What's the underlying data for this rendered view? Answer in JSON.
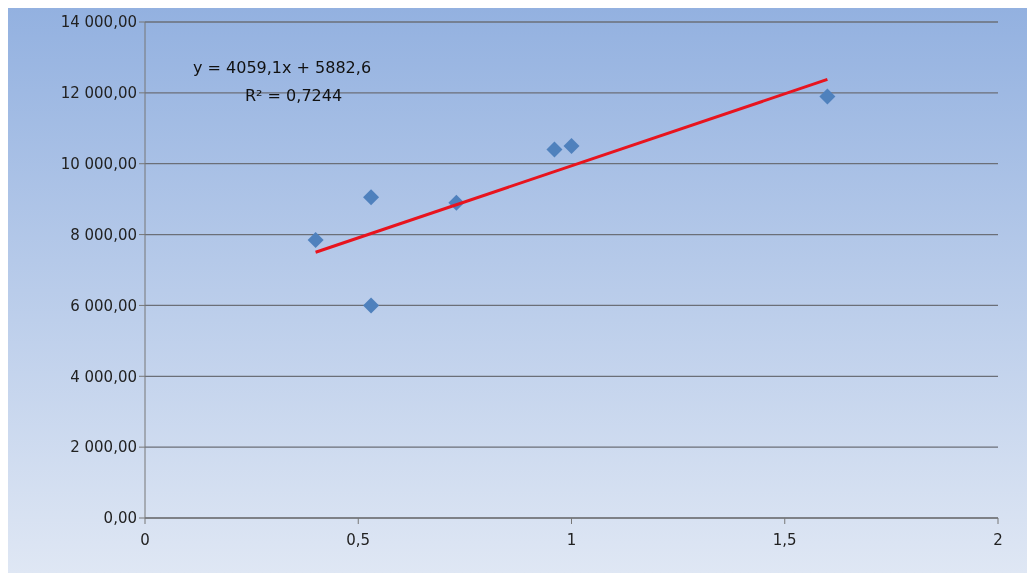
{
  "chart_data": {
    "type": "scatter",
    "marker": "diamond",
    "grid": "y",
    "legend": false,
    "xlim": [
      0,
      2
    ],
    "xticks": [
      0,
      {
        "value": 0.5,
        "label": "0,5"
      },
      1,
      {
        "value": 1.5,
        "label": "1,5"
      },
      2
    ],
    "ylim": [
      0,
      14000
    ],
    "yticks": [
      {
        "value": 0,
        "label": "0,00"
      },
      {
        "value": 2000,
        "label": "2 000,00"
      },
      {
        "value": 4000,
        "label": "4 000,00"
      },
      {
        "value": 6000,
        "label": "6 000,00"
      },
      {
        "value": 8000,
        "label": "8 000,00"
      },
      {
        "value": 10000,
        "label": "10 000,00"
      },
      {
        "value": 12000,
        "label": "12 000,00"
      },
      {
        "value": 14000,
        "label": "14 000,00"
      }
    ],
    "annotations": [
      "y = 4059,1x + 5882,6",
      "R² = 0,7244"
    ],
    "series": [
      {
        "color": "#4f81bd",
        "x": [
          0.4,
          0.53,
          0.53,
          0.73,
          0.96,
          1.0,
          1.6
        ],
        "values": [
          7850,
          9050,
          6000,
          8900,
          10400,
          10500,
          11900
        ]
      },
      {
        "type": "line",
        "marker": "none",
        "color": "#e8141e",
        "x": [
          0.4,
          1.6
        ],
        "values": [
          7500,
          12380
        ]
      }
    ]
  }
}
